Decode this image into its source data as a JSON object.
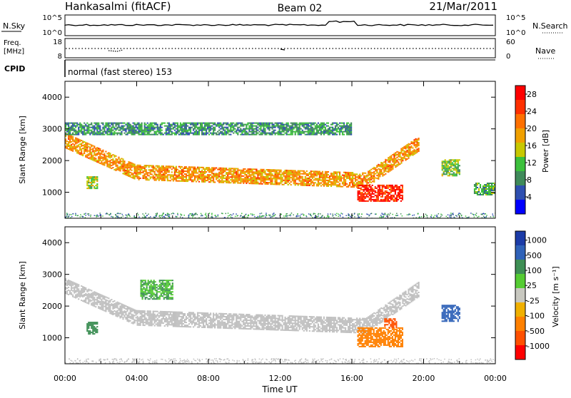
{
  "header": {
    "station": "Hankasalmi (fitACF)",
    "beam": "Beam 02",
    "date": "21/Mar/2011"
  },
  "noise_panel": {
    "left_label": "N.Sky",
    "right_label": "N.Search",
    "left_ticks": [
      "10^5",
      "10^0"
    ],
    "right_ticks": [
      "10^5",
      "10^0"
    ]
  },
  "freq_panel": {
    "left_label_1": "Freq.",
    "left_label_2": "[MHz]",
    "left_ticks": [
      "18",
      "8"
    ],
    "right_label": "Nave",
    "right_ticks": [
      "60",
      "0"
    ]
  },
  "cpid": {
    "label": "CPID",
    "program": "normal (fast stereo) 153"
  },
  "x_axis": {
    "title": "Time UT",
    "ticks": [
      "00:00",
      "04:00",
      "08:00",
      "12:00",
      "16:00",
      "20:00",
      "00:00"
    ]
  },
  "colors": {
    "power_scale": [
      "#0000ff",
      "#2e4fb0",
      "#3f8a5a",
      "#3cc03c",
      "#c8c800",
      "#f0a000",
      "#ff7000",
      "#ff3000",
      "#ff0000"
    ],
    "velocity_scale": [
      "#1c3ca8",
      "#2f62b8",
      "#3e8f55",
      "#55cc33",
      "#c8c8c0",
      "#f0b000",
      "#ff8000",
      "#ff5000",
      "#ff0000"
    ],
    "ground_scatter": "#c0c0c0"
  },
  "chart_data": [
    {
      "type": "heatmap",
      "title": "",
      "xlabel": "Time UT",
      "ylabel": "Slant Range [km]",
      "xlim": [
        0,
        24
      ],
      "ylim": [
        180,
        4500
      ],
      "yticks": [
        "1000",
        "2000",
        "3000",
        "4000"
      ],
      "colorbar": {
        "label": "Power [dB]",
        "range": [
          0,
          30
        ],
        "ticks": [
          "4",
          "8",
          "12",
          "16",
          "20",
          "24",
          "28"
        ]
      },
      "features": [
        {
          "name": "main scatter band",
          "t_start": 0.0,
          "t_end": 19.7,
          "range_start_km": 2600,
          "range_mid_km": 1350,
          "range_end_km": 2500,
          "power_dB": 20
        },
        {
          "name": "upper scatter",
          "t_start": 0.0,
          "t_end": 16.0,
          "range_low_km": 2800,
          "range_high_km": 3200,
          "power_dB": 8
        },
        {
          "name": "strong echo",
          "t_start": 16.3,
          "t_end": 18.8,
          "range_low_km": 700,
          "range_high_km": 1200,
          "power_dB": 28
        },
        {
          "name": "early patch",
          "t_start": 1.2,
          "t_end": 1.8,
          "range_low_km": 1100,
          "range_high_km": 1500,
          "power_dB": 14
        },
        {
          "name": "late patch",
          "t_start": 21.0,
          "t_end": 22.0,
          "range_low_km": 1500,
          "range_high_km": 2000,
          "power_dB": 12
        },
        {
          "name": "end patch",
          "t_start": 22.8,
          "t_end": 24.0,
          "range_low_km": 900,
          "range_high_km": 1300,
          "power_dB": 10
        }
      ]
    },
    {
      "type": "heatmap",
      "title": "",
      "xlabel": "Time UT",
      "ylabel": "Slant Range [km]",
      "xlim": [
        0,
        24
      ],
      "ylim": [
        180,
        4500
      ],
      "yticks": [
        "1000",
        "2000",
        "3000",
        "4000"
      ],
      "colorbar": {
        "label": "Velocity [m s⁻¹]",
        "ticks": [
          "1000",
          "500",
          "100",
          "25",
          "-25",
          "-100",
          "-500",
          "-1000"
        ]
      },
      "features": [
        {
          "name": "ground scatter band",
          "t_start": 0.0,
          "t_end": 19.7,
          "range_start_km": 2600,
          "range_mid_km": 1350,
          "range_end_km": 2500,
          "velocity": 0
        },
        {
          "name": "green patch",
          "t_start": 1.2,
          "t_end": 1.8,
          "range_low_km": 1100,
          "range_high_km": 1500,
          "velocity": 300
        },
        {
          "name": "mixed echoes",
          "t_start": 4.2,
          "t_end": 6.0,
          "range_low_km": 2200,
          "range_high_km": 2800,
          "velocity": 100
        },
        {
          "name": "orange echo",
          "t_start": 16.3,
          "t_end": 18.8,
          "range_low_km": 700,
          "range_high_km": 1300,
          "velocity": -200
        },
        {
          "name": "red echo",
          "t_start": 17.8,
          "t_end": 18.5,
          "range_low_km": 1300,
          "range_high_km": 1600,
          "velocity": -1000
        },
        {
          "name": "blue patch",
          "t_start": 21.0,
          "t_end": 22.0,
          "range_low_km": 1500,
          "range_high_km": 2000,
          "velocity": 800
        }
      ]
    }
  ]
}
